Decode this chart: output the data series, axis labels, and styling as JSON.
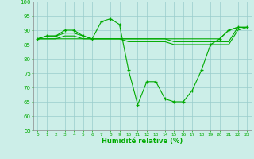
{
  "x": [
    0,
    1,
    2,
    3,
    4,
    5,
    6,
    7,
    8,
    9,
    10,
    11,
    12,
    13,
    14,
    15,
    16,
    17,
    18,
    19,
    20,
    21,
    22,
    23
  ],
  "line_main": [
    87,
    88,
    88,
    90,
    90,
    88,
    87,
    93,
    94,
    92,
    76,
    64,
    72,
    72,
    66,
    65,
    65,
    69,
    76,
    85,
    87,
    90,
    91,
    91
  ],
  "line2": [
    87,
    88,
    88,
    89,
    89,
    88,
    87,
    87,
    87,
    87,
    87,
    87,
    87,
    87,
    87,
    87,
    87,
    87,
    87,
    87,
    87,
    90,
    91,
    91
  ],
  "line3": [
    87,
    87,
    87,
    88,
    88,
    87,
    87,
    87,
    87,
    87,
    87,
    87,
    87,
    87,
    87,
    86,
    86,
    86,
    86,
    86,
    86,
    86,
    91,
    91
  ],
  "line4": [
    87,
    87,
    87,
    87,
    87,
    87,
    87,
    87,
    87,
    87,
    86,
    86,
    86,
    86,
    86,
    85,
    85,
    85,
    85,
    85,
    85,
    85,
    90,
    91
  ],
  "bg_color": "#cceee8",
  "grid_color": "#99cccc",
  "line_color": "#00aa00",
  "xlabel": "Humidité relative (%)",
  "ylim": [
    55,
    100
  ],
  "xlim": [
    -0.5,
    23.5
  ],
  "yticks": [
    55,
    60,
    65,
    70,
    75,
    80,
    85,
    90,
    95,
    100
  ],
  "xticks": [
    0,
    1,
    2,
    3,
    4,
    5,
    6,
    7,
    8,
    9,
    10,
    11,
    12,
    13,
    14,
    15,
    16,
    17,
    18,
    19,
    20,
    21,
    22,
    23
  ],
  "xlabel_fontsize": 6.0,
  "xtick_fontsize": 4.2,
  "ytick_fontsize": 5.0
}
